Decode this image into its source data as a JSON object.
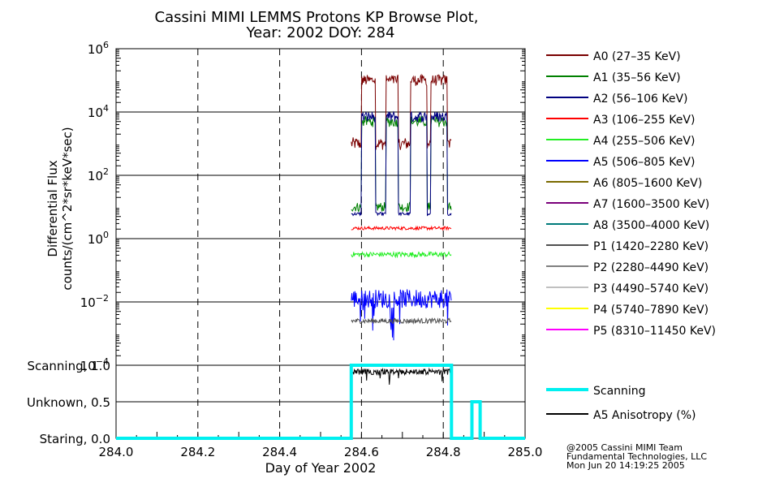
{
  "chart_data": [
    {
      "type": "line",
      "title_line1": "Cassini MIMI LEMMS Protons KP Browse Plot,",
      "title_line2": "Year: 2002 DOY: 284",
      "ylabel_line1": "Differential Flux",
      "ylabel_line2": "counts/(cm^2*sr*keV*sec)",
      "y_scale": "log",
      "ylim": [
        0.0001,
        1000000
      ],
      "y_ticks": [
        {
          "exp": "6"
        },
        {
          "exp": "4"
        },
        {
          "exp": "2"
        },
        {
          "exp": "0"
        },
        {
          "exp": "−2"
        },
        {
          "exp": "−4"
        }
      ],
      "y_tick_base": "10",
      "xlim": [
        284.0,
        285.0
      ],
      "series": [
        {
          "name": "A0 (27–35 KeV)",
          "color": "#7a0000"
        },
        {
          "name": "A1 (35–56 KeV)",
          "color": "#008000"
        },
        {
          "name": "A2 (56–106 KeV)",
          "color": "#000080"
        },
        {
          "name": "A3 (106–255 KeV)",
          "color": "#ff0000"
        },
        {
          "name": "A4 (255–506 KeV)",
          "color": "#22ee22"
        },
        {
          "name": "A5 (506–805 KeV)",
          "color": "#0000ff"
        },
        {
          "name": "A6 (805–1600 KeV)",
          "color": "#7a6a00"
        },
        {
          "name": "A7 (1600–3500 KeV)",
          "color": "#7a007a"
        },
        {
          "name": "A8 (3500–4000 KeV)",
          "color": "#007a7a"
        },
        {
          "name": "P1 (1420–2280 KeV)",
          "color": "#505050"
        },
        {
          "name": "P2 (2280–4490 KeV)",
          "color": "#808080"
        },
        {
          "name": "P3 (4490–5740 KeV)",
          "color": "#c0c0c0"
        },
        {
          "name": "P4 (5740–7890 KeV)",
          "color": "#ffff00"
        },
        {
          "name": "P5 (8310–11450 KeV)",
          "color": "#ff00ff"
        }
      ],
      "profiles": [
        {
          "name": "A0",
          "baseline": 3.0,
          "jitter": 0.2,
          "plateau": 5.0,
          "start": 284.575
        },
        {
          "name": "A1",
          "baseline": 1.0,
          "jitter": 0.15,
          "plateau": 3.7,
          "start": 284.575
        },
        {
          "name": "A2",
          "baseline": 0.78,
          "jitter": 0.05,
          "plateau": 3.85,
          "start": 284.575
        },
        {
          "name": "A3",
          "baseline": 0.33,
          "jitter": 0.05,
          "start": 284.575
        },
        {
          "name": "A4",
          "baseline": -0.5,
          "jitter": 0.08,
          "start": 284.575
        },
        {
          "name": "A5",
          "baseline": -1.9,
          "jitter": 0.3,
          "start": 284.575
        },
        {
          "name": "P1",
          "baseline": -2.6,
          "jitter": 0.08,
          "start": 284.575
        }
      ]
    },
    {
      "type": "line",
      "y_ticks": [
        {
          "label": "Scanning, 1.0",
          "value": 1.0
        },
        {
          "label": "Unknown, 0.5",
          "value": 0.5
        },
        {
          "label": "Staring, 0.0",
          "value": 0.0
        }
      ],
      "ylim": [
        0.0,
        1.0
      ],
      "xlim": [
        284.0,
        285.0
      ],
      "x_ticks": [
        "284.0",
        "284.2",
        "284.4",
        "284.6",
        "284.8",
        "285.0"
      ],
      "xlabel": "Day of Year 2002",
      "series": [
        {
          "name": "Scanning",
          "color": "#00f0f0",
          "x": [
            284.0,
            284.575,
            284.575,
            284.82,
            284.82,
            284.87,
            284.87,
            284.89,
            284.89,
            285.0
          ],
          "y": [
            0.0,
            0.0,
            1.0,
            1.0,
            0.0,
            0.0,
            0.5,
            0.5,
            0.0,
            0.0
          ]
        },
        {
          "name": "A5 Anisotropy (%)",
          "color": "#000000"
        }
      ]
    }
  ],
  "credits": {
    "line1": "@2005 Cassini MIMI Team",
    "line2": "Fundamental Technologies, LLC",
    "line3": "Mon Jun 20 14:19:25 2005"
  }
}
